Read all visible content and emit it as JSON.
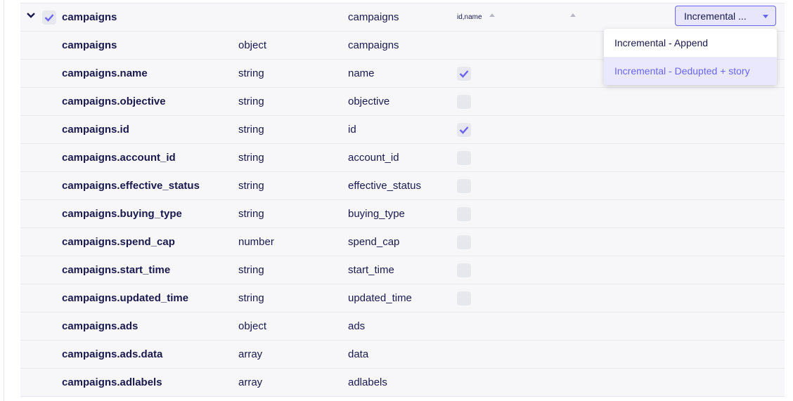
{
  "stream": {
    "name": "campaigns",
    "destination": "campaigns",
    "primary_key": "id,name",
    "checked": true,
    "expanded": true,
    "sync_mode": "Incremental ...",
    "sync_mode_options": [
      "Incremental - Append",
      "Incremental - Dedupted + story"
    ],
    "selected_option_index": 1
  },
  "fields": [
    {
      "name": "campaigns",
      "type": "object",
      "dest": "campaigns",
      "checkbox": null
    },
    {
      "name": "campaigns.name",
      "type": "string",
      "dest": "name",
      "checkbox": true
    },
    {
      "name": "campaigns.objective",
      "type": "string",
      "dest": "objective",
      "checkbox": false
    },
    {
      "name": "campaigns.id",
      "type": "string",
      "dest": "id",
      "checkbox": true
    },
    {
      "name": "campaigns.account_id",
      "type": "string",
      "dest": "account_id",
      "checkbox": false
    },
    {
      "name": "campaigns.effective_status",
      "type": "string",
      "dest": "effective_status",
      "checkbox": false
    },
    {
      "name": "campaigns.buying_type",
      "type": "string",
      "dest": "buying_type",
      "checkbox": false
    },
    {
      "name": "campaigns.spend_cap",
      "type": "number",
      "dest": "spend_cap",
      "checkbox": false
    },
    {
      "name": "campaigns.start_time",
      "type": "string",
      "dest": "start_time",
      "checkbox": false
    },
    {
      "name": "campaigns.updated_time",
      "type": "string",
      "dest": "updated_time",
      "checkbox": false
    },
    {
      "name": "campaigns.ads",
      "type": "object",
      "dest": "ads",
      "checkbox": null
    },
    {
      "name": "campaigns.ads.data",
      "type": "array",
      "dest": "data",
      "checkbox": null
    },
    {
      "name": "campaigns.adlabels",
      "type": "array",
      "dest": "adlabels",
      "checkbox": null
    }
  ],
  "colors": {
    "accent": "#6b64f0",
    "row_bg": "#f7f7fa",
    "text": "#1a194d"
  }
}
